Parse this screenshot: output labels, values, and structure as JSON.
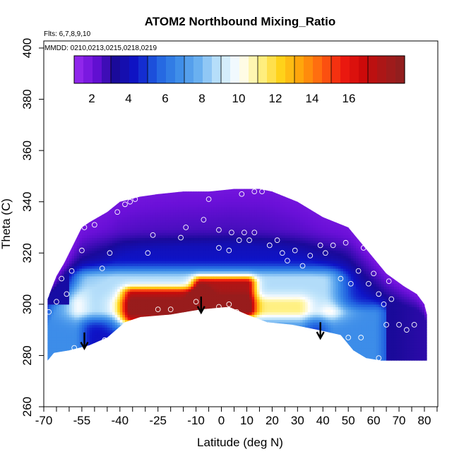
{
  "chart_data": {
    "type": "heatmap",
    "title": "ATOM2 Northbound Mixing_Ratio",
    "flights_label": "Flts: 6,7,8,9,10",
    "dates_label": "MMDD: 0210,0213,0215,0218,0219",
    "xlabel": "Latitude (deg N)",
    "ylabel": "Theta (C)",
    "xlim": [
      -70,
      85
    ],
    "ylim": [
      260,
      405
    ],
    "x_ticks": [
      -70,
      -55,
      -40,
      -25,
      -10,
      0,
      10,
      20,
      30,
      40,
      50,
      60,
      70,
      80
    ],
    "x_minor_ticks": [
      -65,
      -60,
      -50,
      -45,
      -35,
      -30,
      -20,
      -15,
      -5,
      5,
      15,
      25,
      35,
      45,
      55,
      65,
      75,
      85
    ],
    "y_ticks": [
      260,
      280,
      300,
      320,
      340,
      360,
      380,
      400
    ],
    "colorbar": {
      "range": [
        0,
        18
      ],
      "ticks": [
        2,
        4,
        6,
        8,
        10,
        12,
        14,
        16
      ],
      "palette": [
        "#9a2cf0",
        "#6a10d8",
        "#1a0a9a",
        "#0e14c8",
        "#2060e0",
        "#3a8ae8",
        "#6ab0f0",
        "#bfe4fb",
        "#ffffff",
        "#fff28a",
        "#ffd21a",
        "#ffa00a",
        "#ff6010",
        "#ee1a10",
        "#cc0a0a",
        "#a81818",
        "#8c2020"
      ]
    },
    "upper_boundary": [
      [
        -68.5,
        302
      ],
      [
        -67,
        306
      ],
      [
        -65,
        311
      ],
      [
        -62,
        316
      ],
      [
        -60,
        320
      ],
      [
        -57,
        326
      ],
      [
        -55,
        330
      ],
      [
        -52,
        332
      ],
      [
        -45,
        336
      ],
      [
        -40,
        340
      ],
      [
        -32,
        342
      ],
      [
        -25,
        343
      ],
      [
        -15,
        344
      ],
      [
        -5,
        344
      ],
      [
        5,
        345
      ],
      [
        15,
        345
      ],
      [
        20,
        344
      ],
      [
        30,
        340
      ],
      [
        40,
        334
      ],
      [
        50,
        330
      ],
      [
        55,
        324
      ],
      [
        60,
        318
      ],
      [
        65,
        312
      ],
      [
        72,
        307
      ],
      [
        77,
        304
      ],
      [
        80,
        300
      ],
      [
        81,
        296
      ]
    ],
    "lower_boundary": [
      [
        -68.5,
        278
      ],
      [
        -66,
        281
      ],
      [
        -60,
        282
      ],
      [
        -52,
        284
      ],
      [
        -45,
        287
      ],
      [
        -38,
        293
      ],
      [
        -32,
        295
      ],
      [
        -20,
        296
      ],
      [
        -8,
        298
      ],
      [
        3,
        299
      ],
      [
        10,
        296
      ],
      [
        18,
        293
      ],
      [
        28,
        292
      ],
      [
        38,
        290
      ],
      [
        47,
        288
      ],
      [
        52,
        282
      ],
      [
        57,
        279
      ],
      [
        63,
        278
      ],
      [
        72,
        278
      ],
      [
        81,
        278
      ]
    ],
    "features": [
      {
        "name": "low-upper-layer",
        "lat": [
          -70,
          80
        ],
        "theta": [
          318,
          346
        ],
        "value": 1.5
      },
      {
        "name": "dark-band",
        "lat": [
          -62,
          70
        ],
        "theta": [
          305,
          322
        ],
        "value": 3
      },
      {
        "name": "blue-core",
        "lat": [
          -52,
          40
        ],
        "theta": [
          298,
          310
        ],
        "value": 7
      },
      {
        "name": "southern-red-core",
        "lat": [
          -35,
          -10
        ],
        "theta": [
          295,
          304
        ],
        "value": 15
      },
      {
        "name": "equatorial-red-core",
        "lat": [
          -8,
          10
        ],
        "theta": [
          298,
          308
        ],
        "value": 16
      }
    ],
    "obs_points": [
      [
        -68,
        297
      ],
      [
        -67,
        278
      ],
      [
        -65,
        301
      ],
      [
        -64,
        280
      ],
      [
        -63,
        310
      ],
      [
        -61,
        304
      ],
      [
        -59,
        313
      ],
      [
        -58,
        283
      ],
      [
        -55,
        321
      ],
      [
        -54,
        330
      ],
      [
        -53,
        333
      ],
      [
        -50,
        331
      ],
      [
        -47,
        314
      ],
      [
        -46,
        286
      ],
      [
        -44,
        320
      ],
      [
        -41,
        336
      ],
      [
        -38,
        339
      ],
      [
        -36,
        340
      ],
      [
        -34,
        341
      ],
      [
        -29,
        320
      ],
      [
        -27,
        327
      ],
      [
        -25,
        298
      ],
      [
        -20,
        298
      ],
      [
        -16,
        326
      ],
      [
        -14,
        330
      ],
      [
        -7,
        333
      ],
      [
        -5,
        341
      ],
      [
        -1,
        322
      ],
      [
        -1,
        329
      ],
      [
        3,
        321
      ],
      [
        4,
        328
      ],
      [
        7,
        325
      ],
      [
        9,
        328
      ],
      [
        11,
        325
      ],
      [
        13,
        328
      ],
      [
        8,
        343
      ],
      [
        13,
        344
      ],
      [
        16,
        344
      ],
      [
        -10,
        301
      ],
      [
        -1,
        299
      ],
      [
        3,
        300
      ],
      [
        6,
        297
      ],
      [
        19,
        323
      ],
      [
        22,
        325
      ],
      [
        24,
        320
      ],
      [
        26,
        317
      ],
      [
        29,
        321
      ],
      [
        32,
        315
      ],
      [
        35,
        319
      ],
      [
        39,
        323
      ],
      [
        41,
        320
      ],
      [
        44,
        323
      ],
      [
        49,
        324
      ],
      [
        47,
        310
      ],
      [
        51,
        308
      ],
      [
        54,
        313
      ],
      [
        56,
        322
      ],
      [
        58,
        308
      ],
      [
        60,
        312
      ],
      [
        62,
        304
      ],
      [
        64,
        300
      ],
      [
        66,
        309
      ],
      [
        67,
        302
      ],
      [
        70,
        292
      ],
      [
        73,
        290
      ],
      [
        76,
        292
      ],
      [
        65,
        292
      ],
      [
        55,
        287
      ],
      [
        50,
        287
      ],
      [
        46,
        285
      ],
      [
        62,
        279
      ]
    ],
    "arrows": [
      {
        "lat": -54,
        "theta_top": 289,
        "theta_bottom": 283
      },
      {
        "lat": -8,
        "theta_top": 303,
        "theta_bottom": 297
      },
      {
        "lat": 39,
        "theta_top": 293,
        "theta_bottom": 287
      }
    ]
  }
}
